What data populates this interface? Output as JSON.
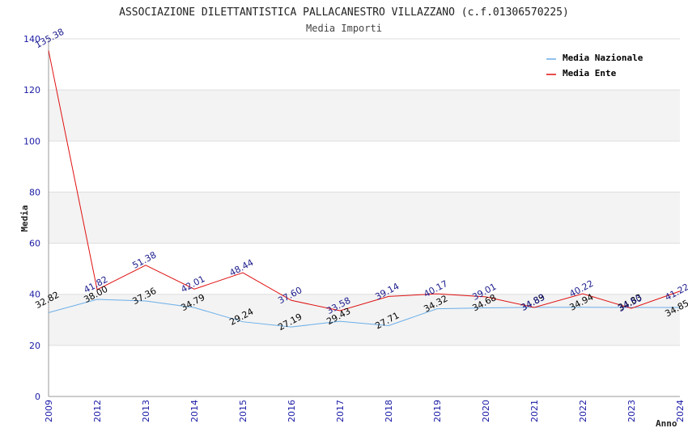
{
  "chart_data": {
    "type": "line",
    "title": "ASSOCIAZIONE DILETTANTISTICA PALLACANESTRO VILLAZZANO (c.f.01306570225)",
    "subtitle": "Media Importi",
    "xlabel": "Anno",
    "ylabel": "Media",
    "ylim": [
      0,
      140
    ],
    "yticks": [
      0,
      20,
      40,
      60,
      80,
      100,
      120,
      140
    ],
    "grid": true,
    "legend_position": "top-right",
    "categories": [
      "2009",
      "2012",
      "2013",
      "2014",
      "2015",
      "2016",
      "2017",
      "2018",
      "2019",
      "2020",
      "2021",
      "2022",
      "2023",
      "2024"
    ],
    "series": [
      {
        "name": "Media Nazionale",
        "color": "#6aaee8",
        "label_color": "#000000",
        "values": [
          32.82,
          38.0,
          37.36,
          34.79,
          29.24,
          27.19,
          29.43,
          27.71,
          34.32,
          34.68,
          34.89,
          34.94,
          34.83,
          34.85
        ]
      },
      {
        "name": "Media Ente",
        "color": "#e01010",
        "label_color": "#1a1a8c",
        "values": [
          135.38,
          41.82,
          51.38,
          42.01,
          48.44,
          37.6,
          33.58,
          39.14,
          40.17,
          39.01,
          34.83,
          40.22,
          34.5,
          41.22
        ]
      }
    ]
  }
}
